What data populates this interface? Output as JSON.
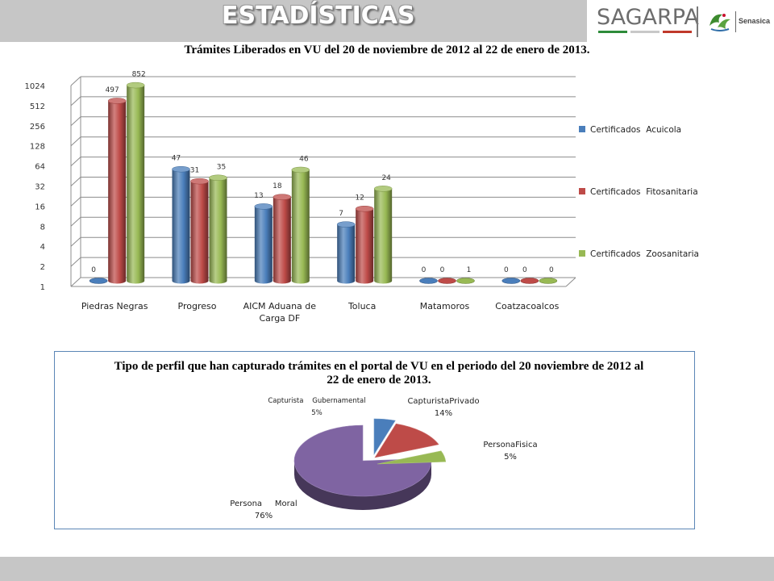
{
  "header": {
    "title": "ESTADÍSTICAS",
    "logo_text": "SAGARPA",
    "partner_logo_text": "Senasica"
  },
  "chart_data": [
    {
      "type": "bar",
      "title": "Trámites Liberados en VU  del 20 de noviembre de 2012 al 22 de enero de 2013.",
      "categories": [
        "Piedras Negras",
        "Progreso",
        "AICM Aduana de Carga DF",
        "Toluca",
        "Matamoros",
        "Coatzacoalcos"
      ],
      "series": [
        {
          "name": "Certificados  Acuicola",
          "color": "#4a7ebb",
          "values": [
            0,
            47,
            13,
            7,
            0,
            0
          ]
        },
        {
          "name": "Certificados  Fitosanitaria",
          "color": "#be4b48",
          "values": [
            497,
            31,
            18,
            12,
            0,
            0
          ]
        },
        {
          "name": "Certificados  Zoosanitaria",
          "color": "#98b954",
          "values": [
            852,
            35,
            46,
            24,
            1,
            0
          ]
        }
      ],
      "yscale": "log2",
      "yticks": [
        1,
        2,
        4,
        8,
        16,
        32,
        64,
        128,
        256,
        512,
        1024
      ],
      "ylim": [
        1,
        1024
      ],
      "legend_position": "right",
      "grid": true
    },
    {
      "type": "pie",
      "title": "Tipo de perfil que han capturado trámites en el portal de VU en el periodo del 20 noviembre de 2012 al 22 de enero de 2013.",
      "slices": [
        {
          "label": "Capturista    Gubernamental",
          "value": 5,
          "pct": "5%",
          "color": "#4a7ebb"
        },
        {
          "label": "CapturistaPrivado",
          "value": 14,
          "pct": "14%",
          "color": "#be4b48"
        },
        {
          "label": "PersonaFisica",
          "value": 5,
          "pct": "5%",
          "color": "#98b954"
        },
        {
          "label": "Persona     Moral",
          "value": 76,
          "pct": "76%",
          "color": "#7f64a2"
        }
      ]
    }
  ]
}
